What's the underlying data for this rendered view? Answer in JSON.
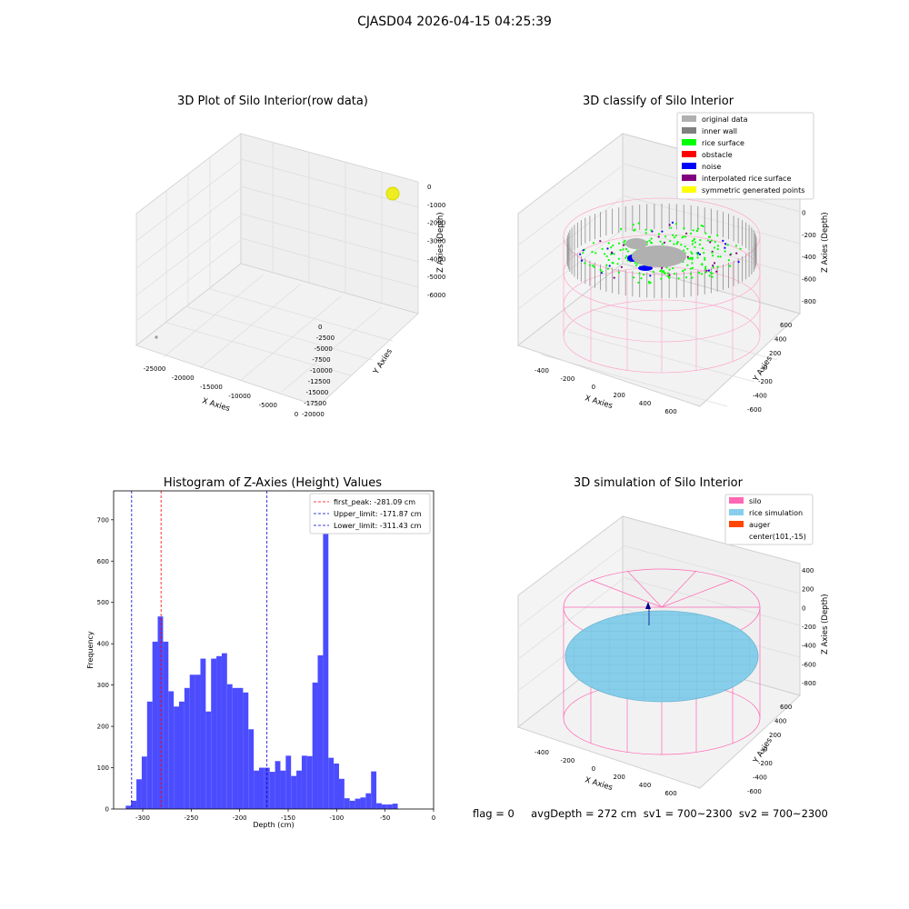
{
  "figure": {
    "suptitle": "CJASD04 2026-04-15 04:25:39",
    "footer": "flag = 0     avgDepth = 272 cm  sv1 = 700~2300  sv2 = 700~2300"
  },
  "colors": {
    "histogram_bar": "#4c4cff",
    "first_peak_line": "#ff0000",
    "limit_lines": "#0000cc",
    "original_data": "#b0b0b0",
    "inner_wall": "#808080",
    "rice_surface": "#00ff00",
    "obstacle": "#ff0000",
    "noise": "#0000ff",
    "interpolated_rice_surface": "#800080",
    "symmetric_generated_points": "#ffff00",
    "silo": "#ff69b4",
    "rice_simulation": "#87ceeb",
    "auger": "#ff4500"
  },
  "chart_data": [
    {
      "type": "scatter",
      "title": "3D Plot of Silo Interior(row data)",
      "xlabel": "X Axies",
      "ylabel": "Y Axies",
      "zlabel": "Z Axies (Depth)",
      "xticks": [
        "-25000",
        "-20000",
        "-15000",
        "-10000",
        "-5000",
        "0"
      ],
      "yticks": [
        "0",
        "-2500",
        "-5000",
        "-7500",
        "-10000",
        "-12500",
        "-15000",
        "-17500",
        "-20000"
      ],
      "zticks": [
        "0",
        "-1000",
        "-2000",
        "-3000",
        "-4000",
        "-5000",
        "-6000"
      ],
      "xlim": [
        -27000,
        0
      ],
      "ylim": [
        -20000,
        0
      ],
      "zlim": [
        -6500,
        0
      ]
    },
    {
      "type": "scatter",
      "title": "3D classify of Silo Interior",
      "xlabel": "X Axies",
      "ylabel": "Y Axies",
      "zlabel": "Z Axies (Depth)",
      "xticks": [
        "-400",
        "-200",
        "0",
        "200",
        "400",
        "600"
      ],
      "yticks": [
        "600",
        "400",
        "200",
        "0",
        "-200",
        "-400",
        "-600"
      ],
      "zticks": [
        "200",
        "0",
        "-200",
        "-400",
        "-600",
        "-800"
      ],
      "legend_position": "top-right",
      "legend": [
        "original data",
        "inner wall",
        "rice surface",
        "obstacle",
        "noise",
        "interpolated rice surface",
        "symmetric generated points"
      ]
    },
    {
      "type": "bar",
      "title": "Histogram of Z-Axies (Height) Values",
      "xlabel": "Depth (cm)",
      "ylabel": "Frequency",
      "xlim": [
        -330,
        0
      ],
      "ylim": [
        0,
        770
      ],
      "xticks": [
        "-300",
        "-250",
        "-200",
        "-150",
        "-100",
        "-50",
        "0"
      ],
      "yticks": [
        "0",
        "100",
        "200",
        "300",
        "400",
        "500",
        "600",
        "700"
      ],
      "bin_start": -317.5,
      "bin_width": 5.5,
      "values": [
        8,
        20,
        72,
        127,
        260,
        405,
        466,
        405,
        285,
        248,
        260,
        293,
        325,
        325,
        364,
        236,
        364,
        370,
        377,
        302,
        293,
        293,
        282,
        193,
        93,
        100,
        100,
        90,
        116,
        93,
        129,
        80,
        93,
        129,
        128,
        306,
        372,
        731,
        124,
        110,
        73,
        26,
        20,
        25,
        28,
        38,
        91,
        14,
        11,
        11,
        13
      ],
      "lines": [
        {
          "label": "first_peak: -281.09 cm",
          "x": -281.09,
          "color": "#ff0000"
        },
        {
          "label": "Upper_limit: -171.87 cm",
          "x": -171.87,
          "color": "#0000cc"
        },
        {
          "label": "Lower_limit: -311.43 cm",
          "x": -311.43,
          "color": "#0000cc"
        }
      ],
      "legend_position": "top-right"
    },
    {
      "type": "scatter",
      "title": "3D simulation of Silo Interior",
      "xlabel": "X Axies",
      "ylabel": "Y Axies",
      "zlabel": "Z Axies (Depth)",
      "xticks": [
        "-400",
        "-200",
        "0",
        "200",
        "400",
        "600"
      ],
      "yticks": [
        "600",
        "400",
        "200",
        "0",
        "-200",
        "-400",
        "-600"
      ],
      "zticks": [
        "400",
        "200",
        "0",
        "-200",
        "-400",
        "-600",
        "-800"
      ],
      "legend_position": "top-right",
      "legend": [
        "silo",
        "rice simulation",
        "auger",
        "center(101,-15)"
      ]
    }
  ]
}
